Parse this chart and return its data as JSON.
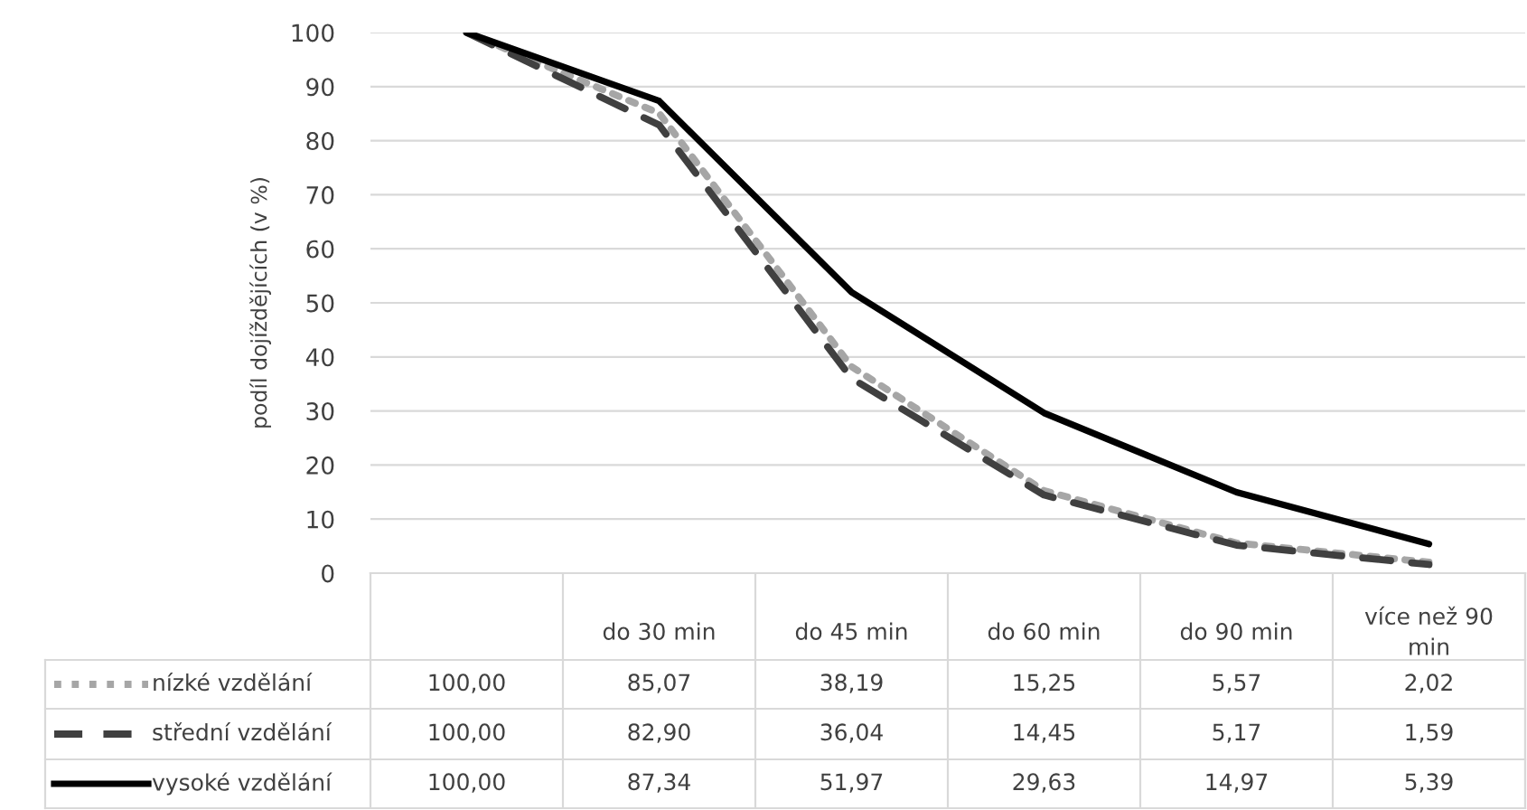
{
  "chart_data": {
    "type": "line",
    "ylabel": "podíl dojíždějících (v %)",
    "categories": [
      null,
      "do 30 min",
      "do 45 min",
      "do 60 min",
      "do 90 min",
      "více než 90 min"
    ],
    "series": [
      {
        "name": "nízké vzdělání",
        "color": "#a6a6a6",
        "line_style": "dotted",
        "values": [
          100.0,
          85.07,
          38.19,
          15.25,
          5.57,
          2.02
        ],
        "value_labels": [
          "100,00",
          "85,07",
          "38,19",
          "15,25",
          "5,57",
          "2,02"
        ]
      },
      {
        "name": "střední vzdělání",
        "color": "#404040",
        "line_style": "dashed",
        "values": [
          100.0,
          82.9,
          36.04,
          14.45,
          5.17,
          1.59
        ],
        "value_labels": [
          "100,00",
          "82,90",
          "36,04",
          "14,45",
          "5,17",
          "1,59"
        ]
      },
      {
        "name": "vysoké vzdělání",
        "color": "#000000",
        "line_style": "solid",
        "values": [
          100.0,
          87.34,
          51.97,
          29.63,
          14.97,
          5.39
        ],
        "value_labels": [
          "100,00",
          "87,34",
          "51,97",
          "29,63",
          "14,97",
          "5,39"
        ]
      }
    ],
    "ylim": [
      0,
      100
    ],
    "yticks": [
      0,
      10,
      20,
      30,
      40,
      50,
      60,
      70,
      80,
      90,
      100
    ],
    "grid": "y",
    "legend": "bottom",
    "marker": "none"
  }
}
